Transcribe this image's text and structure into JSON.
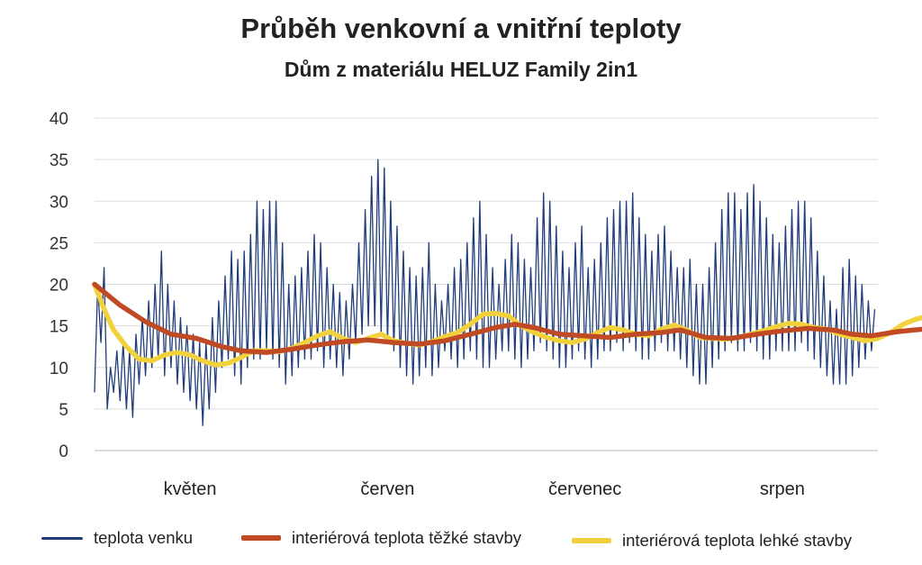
{
  "header": {
    "title": "Průběh venkovní a vnitřní teploty",
    "subtitle": "Dům z materiálu HELUZ Family 2in1"
  },
  "chart_data": {
    "type": "line",
    "ylim": [
      0,
      40
    ],
    "y_ticks": [
      "0",
      "5",
      "10",
      "15",
      "20",
      "25",
      "30",
      "35",
      "40"
    ],
    "x_range_days": [
      0,
      123
    ],
    "months": [
      {
        "label": "květen",
        "center_day": 15
      },
      {
        "label": "červen",
        "center_day": 46
      },
      {
        "label": "červenec",
        "center_day": 77
      },
      {
        "label": "srpen",
        "center_day": 108
      }
    ],
    "grid": true,
    "legend_position": "bottom",
    "series": [
      {
        "name": "teplota venku",
        "color": "#1f3d7a",
        "style": "thin-daily-oscillation",
        "daily_range": [
          [
            7,
            20
          ],
          [
            13,
            22
          ],
          [
            5,
            10
          ],
          [
            7,
            12
          ],
          [
            6,
            13
          ],
          [
            5,
            12
          ],
          [
            4,
            14
          ],
          [
            8,
            16
          ],
          [
            9,
            18
          ],
          [
            10,
            20
          ],
          [
            11,
            24
          ],
          [
            9,
            20
          ],
          [
            10,
            18
          ],
          [
            8,
            16
          ],
          [
            7,
            15
          ],
          [
            6,
            14
          ],
          [
            5,
            13
          ],
          [
            3,
            13
          ],
          [
            5,
            16
          ],
          [
            7,
            18
          ],
          [
            10,
            21
          ],
          [
            11,
            24
          ],
          [
            9,
            23
          ],
          [
            8,
            24
          ],
          [
            10,
            26
          ],
          [
            11,
            30
          ],
          [
            11,
            29
          ],
          [
            12,
            30
          ],
          [
            11,
            30
          ],
          [
            10,
            25
          ],
          [
            8,
            20
          ],
          [
            9,
            21
          ],
          [
            10,
            22
          ],
          [
            11,
            24
          ],
          [
            11,
            26
          ],
          [
            12,
            25
          ],
          [
            10,
            22
          ],
          [
            11,
            20
          ],
          [
            10,
            19
          ],
          [
            9,
            18
          ],
          [
            11,
            20
          ],
          [
            13,
            25
          ],
          [
            14,
            29
          ],
          [
            15,
            33
          ],
          [
            15,
            35
          ],
          [
            14,
            34
          ],
          [
            13,
            30
          ],
          [
            12,
            27
          ],
          [
            10,
            24
          ],
          [
            9,
            22
          ],
          [
            8,
            21
          ],
          [
            9,
            22
          ],
          [
            10,
            25
          ],
          [
            9,
            20
          ],
          [
            10,
            18
          ],
          [
            12,
            20
          ],
          [
            11,
            22
          ],
          [
            10,
            23
          ],
          [
            11,
            25
          ],
          [
            12,
            28
          ],
          [
            11,
            30
          ],
          [
            10,
            26
          ],
          [
            10,
            22
          ],
          [
            11,
            20
          ],
          [
            12,
            23
          ],
          [
            12,
            26
          ],
          [
            11,
            25
          ],
          [
            10,
            23
          ],
          [
            11,
            22
          ],
          [
            12,
            28
          ],
          [
            13,
            31
          ],
          [
            12,
            30
          ],
          [
            11,
            27
          ],
          [
            10,
            24
          ],
          [
            10,
            22
          ],
          [
            11,
            25
          ],
          [
            12,
            27
          ],
          [
            11,
            22
          ],
          [
            10,
            23
          ],
          [
            11,
            25
          ],
          [
            12,
            28
          ],
          [
            12,
            29
          ],
          [
            13,
            30
          ],
          [
            12,
            30
          ],
          [
            13,
            31
          ],
          [
            12,
            28
          ],
          [
            11,
            26
          ],
          [
            11,
            24
          ],
          [
            12,
            26
          ],
          [
            13,
            27
          ],
          [
            12,
            24
          ],
          [
            12,
            22
          ],
          [
            11,
            22
          ],
          [
            10,
            23
          ],
          [
            9,
            20
          ],
          [
            8,
            20
          ],
          [
            8,
            22
          ],
          [
            10,
            25
          ],
          [
            11,
            29
          ],
          [
            12,
            31
          ],
          [
            13,
            31
          ],
          [
            12,
            29
          ],
          [
            12,
            31
          ],
          [
            13,
            32
          ],
          [
            12,
            30
          ],
          [
            11,
            28
          ],
          [
            11,
            26
          ],
          [
            12,
            25
          ],
          [
            12,
            27
          ],
          [
            12,
            29
          ],
          [
            12,
            30
          ],
          [
            13,
            30
          ],
          [
            12,
            28
          ],
          [
            11,
            24
          ],
          [
            10,
            21
          ],
          [
            9,
            18
          ],
          [
            8,
            17
          ],
          [
            8,
            22
          ],
          [
            8,
            23
          ],
          [
            9,
            21
          ],
          [
            10,
            20
          ],
          [
            11,
            18
          ],
          [
            12,
            17
          ]
        ]
      },
      {
        "name": "interiérová teplota těžké stavby",
        "color": "#c04a23",
        "style": "thick",
        "points": [
          [
            0,
            20
          ],
          [
            4,
            17.5
          ],
          [
            8,
            15.5
          ],
          [
            12,
            14
          ],
          [
            16,
            13.5
          ],
          [
            20,
            12.5
          ],
          [
            23,
            12
          ],
          [
            27,
            11.8
          ],
          [
            31,
            12.2
          ],
          [
            35,
            12.7
          ],
          [
            39,
            13.1
          ],
          [
            43,
            13.3
          ],
          [
            47,
            13
          ],
          [
            51,
            12.8
          ],
          [
            55,
            13.2
          ],
          [
            59,
            14
          ],
          [
            63,
            14.8
          ],
          [
            66,
            15.2
          ],
          [
            69,
            14.8
          ],
          [
            73,
            14
          ],
          [
            77,
            13.8
          ],
          [
            81,
            13.6
          ],
          [
            85,
            14
          ],
          [
            89,
            14.2
          ],
          [
            92,
            14.5
          ],
          [
            96,
            13.6
          ],
          [
            100,
            13.5
          ],
          [
            104,
            14
          ],
          [
            108,
            14.4
          ],
          [
            112,
            14.7
          ],
          [
            116,
            14.5
          ],
          [
            119,
            14
          ],
          [
            122,
            13.8
          ],
          [
            126,
            14.3
          ],
          [
            130,
            14.6
          ],
          [
            133,
            15
          ],
          [
            136,
            15.1
          ],
          [
            139,
            14.8
          ],
          [
            141,
            14.4
          ],
          [
            143,
            14.2
          ]
        ]
      },
      {
        "name": "interiérová teplota lehké stavby",
        "color": "#f2d23c",
        "style": "thick",
        "points": [
          [
            0,
            20
          ],
          [
            1.5,
            17
          ],
          [
            3,
            14.5
          ],
          [
            5,
            12.5
          ],
          [
            7,
            11
          ],
          [
            9,
            10.8
          ],
          [
            11,
            11.5
          ],
          [
            13,
            11.8
          ],
          [
            15,
            11.5
          ],
          [
            17,
            10.8
          ],
          [
            19,
            10.3
          ],
          [
            21,
            10.5
          ],
          [
            23,
            11.2
          ],
          [
            25,
            12
          ],
          [
            27,
            12
          ],
          [
            29,
            11.9
          ],
          [
            31,
            12.3
          ],
          [
            33,
            13
          ],
          [
            35,
            13.8
          ],
          [
            37,
            14.3
          ],
          [
            39,
            13.5
          ],
          [
            41,
            13
          ],
          [
            43,
            13.5
          ],
          [
            45,
            14
          ],
          [
            47,
            13.2
          ],
          [
            49,
            12.9
          ],
          [
            51,
            12.7
          ],
          [
            53,
            13.1
          ],
          [
            55,
            13.7
          ],
          [
            57,
            14.2
          ],
          [
            59,
            15.2
          ],
          [
            61,
            16.4
          ],
          [
            63,
            16.5
          ],
          [
            65,
            16.2
          ],
          [
            67,
            15
          ],
          [
            69,
            14.2
          ],
          [
            71,
            13.6
          ],
          [
            73,
            13.2
          ],
          [
            75,
            13
          ],
          [
            77,
            13.4
          ],
          [
            79,
            14.2
          ],
          [
            81,
            14.8
          ],
          [
            83,
            14.5
          ],
          [
            85,
            14
          ],
          [
            87,
            13.8
          ],
          [
            89,
            14.6
          ],
          [
            91,
            15.1
          ],
          [
            93,
            14.5
          ],
          [
            95,
            13.6
          ],
          [
            97,
            13.5
          ],
          [
            99,
            13.4
          ],
          [
            101,
            13.6
          ],
          [
            103,
            14
          ],
          [
            105,
            14.4
          ],
          [
            107,
            14.9
          ],
          [
            109,
            15.3
          ],
          [
            111,
            15.2
          ],
          [
            113,
            14.8
          ],
          [
            115,
            14.6
          ],
          [
            117,
            14
          ],
          [
            119,
            13.6
          ],
          [
            121,
            13.2
          ],
          [
            123,
            13.5
          ],
          [
            125,
            14.2
          ],
          [
            127,
            15.2
          ],
          [
            129,
            15.8
          ],
          [
            131,
            16.2
          ],
          [
            133,
            15.8
          ],
          [
            135,
            15.3
          ],
          [
            137,
            15.4
          ],
          [
            139,
            15.2
          ],
          [
            140,
            14.5
          ],
          [
            141,
            13.8
          ],
          [
            142,
            13.2
          ],
          [
            143,
            13.3
          ]
        ]
      }
    ]
  }
}
